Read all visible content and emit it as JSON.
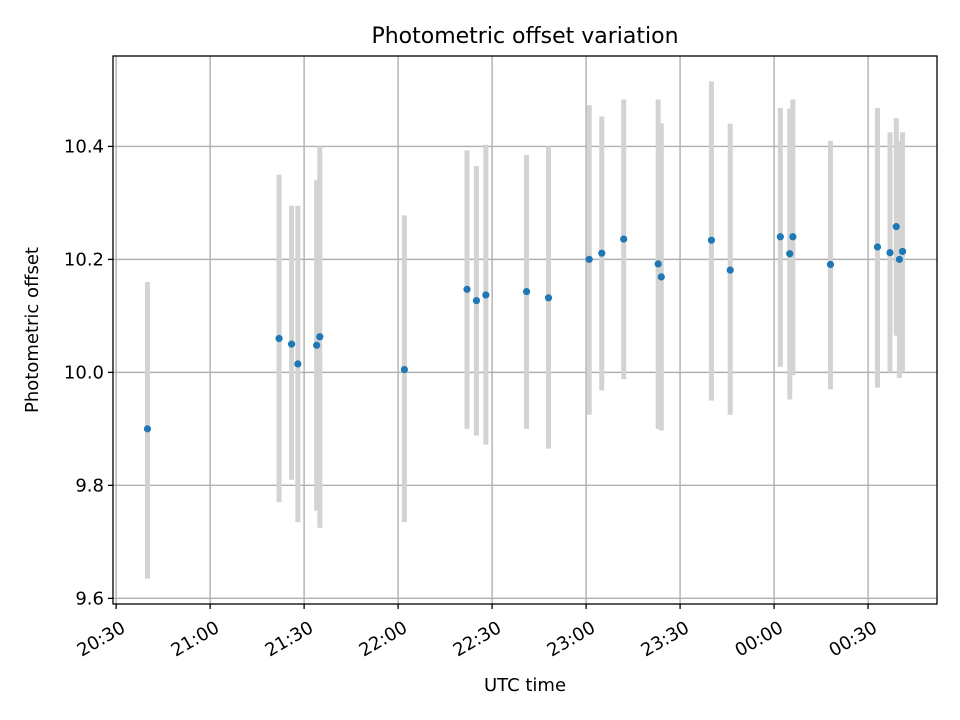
{
  "chart_data": {
    "type": "scatter",
    "title": "Photometric offset variation",
    "xlabel": "UTC time",
    "ylabel": "Photometric offset",
    "x_axis": "time",
    "xlim": [
      "20:29",
      "00:52 (+1 day)"
    ],
    "ylim": [
      9.59,
      10.56
    ],
    "xticks": [
      "20:30",
      "21:00",
      "21:30",
      "22:00",
      "22:30",
      "23:00",
      "23:30",
      "00:00",
      "00:30"
    ],
    "yticks": [
      9.6,
      9.8,
      10.0,
      10.2,
      10.4
    ],
    "grid": true,
    "marker_color": "#1f77b4",
    "errorbar_color": "#d3d3d3",
    "points": [
      {
        "time": "20:40",
        "y": 9.9,
        "err_low": 9.635,
        "err_high": 10.16
      },
      {
        "time": "21:22",
        "y": 10.06,
        "err_low": 9.77,
        "err_high": 10.35
      },
      {
        "time": "21:26",
        "y": 10.05,
        "err_low": 9.81,
        "err_high": 10.295
      },
      {
        "time": "21:28",
        "y": 10.015,
        "err_low": 9.735,
        "err_high": 10.295
      },
      {
        "time": "21:34",
        "y": 10.048,
        "err_low": 9.755,
        "err_high": 10.34
      },
      {
        "time": "21:35",
        "y": 10.063,
        "err_low": 9.725,
        "err_high": 10.4
      },
      {
        "time": "22:02",
        "y": 10.005,
        "err_low": 9.735,
        "err_high": 10.278
      },
      {
        "time": "22:22",
        "y": 10.147,
        "err_low": 9.9,
        "err_high": 10.393
      },
      {
        "time": "22:25",
        "y": 10.127,
        "err_low": 9.888,
        "err_high": 10.365
      },
      {
        "time": "22:28",
        "y": 10.137,
        "err_low": 9.872,
        "err_high": 10.403
      },
      {
        "time": "22:41",
        "y": 10.143,
        "err_low": 9.9,
        "err_high": 10.385
      },
      {
        "time": "22:48",
        "y": 10.132,
        "err_low": 9.865,
        "err_high": 10.4
      },
      {
        "time": "23:01",
        "y": 10.2,
        "err_low": 9.925,
        "err_high": 10.473
      },
      {
        "time": "23:05",
        "y": 10.211,
        "err_low": 9.968,
        "err_high": 10.453
      },
      {
        "time": "23:12",
        "y": 10.236,
        "err_low": 9.988,
        "err_high": 10.483
      },
      {
        "time": "23:23",
        "y": 10.192,
        "err_low": 9.9,
        "err_high": 10.483
      },
      {
        "time": "23:24",
        "y": 10.169,
        "err_low": 9.897,
        "err_high": 10.441
      },
      {
        "time": "23:40",
        "y": 10.234,
        "err_low": 9.95,
        "err_high": 10.515
      },
      {
        "time": "23:46",
        "y": 10.181,
        "err_low": 9.925,
        "err_high": 10.44
      },
      {
        "time": "00:02",
        "y": 10.24,
        "err_low": 10.01,
        "err_high": 10.468
      },
      {
        "time": "00:05",
        "y": 10.21,
        "err_low": 9.952,
        "err_high": 10.467
      },
      {
        "time": "00:06",
        "y": 10.24,
        "err_low": 9.995,
        "err_high": 10.483
      },
      {
        "time": "00:18",
        "y": 10.191,
        "err_low": 9.97,
        "err_high": 10.41
      },
      {
        "time": "00:33",
        "y": 10.222,
        "err_low": 9.973,
        "err_high": 10.468
      },
      {
        "time": "00:37",
        "y": 10.212,
        "err_low": 10.0,
        "err_high": 10.425
      },
      {
        "time": "00:39",
        "y": 10.258,
        "err_low": 10.065,
        "err_high": 10.45
      },
      {
        "time": "00:40",
        "y": 10.2,
        "err_low": 9.99,
        "err_high": 10.41
      },
      {
        "time": "00:41",
        "y": 10.214,
        "err_low": 10.0,
        "err_high": 10.425
      }
    ]
  }
}
